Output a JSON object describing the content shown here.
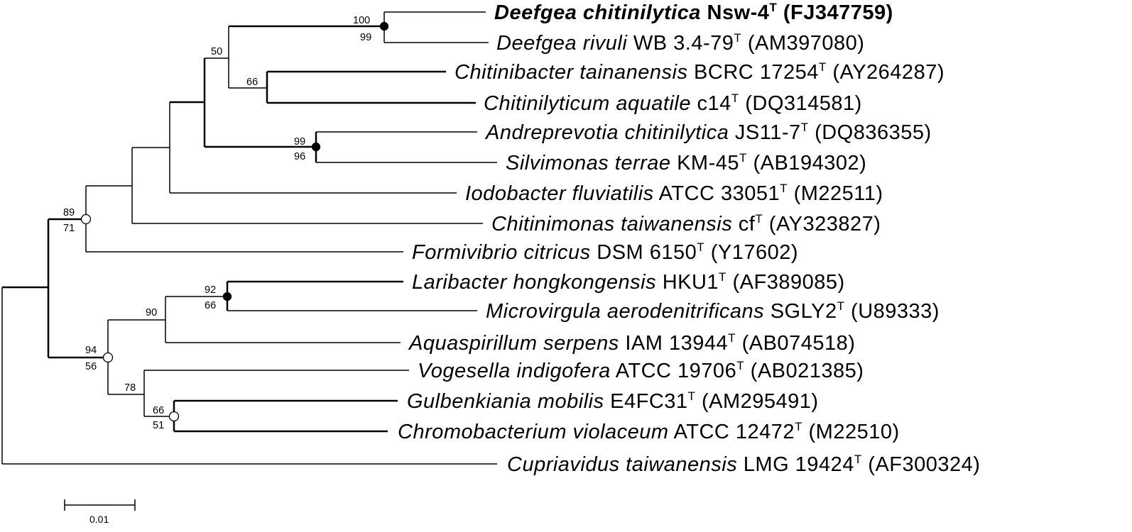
{
  "taxa": [
    {
      "genus": "Deefgea chitinilytica",
      "strain": "Nsw-4",
      "type": "T",
      "accession": "(FJ347759)",
      "bold": true
    },
    {
      "genus": "Deefgea rivuli",
      "strain": "WB 3.4-79",
      "type": "T",
      "accession": "(AM397080)",
      "bold": false
    },
    {
      "genus": "Chitinibacter tainanensis",
      "strain": "BCRC 17254",
      "type": "T",
      "accession": "(AY264287)",
      "bold": false
    },
    {
      "genus": "Chitinilyticum aquatile",
      "strain": "c14",
      "type": "T",
      "accession": "(DQ314581)",
      "bold": false
    },
    {
      "genus": "Andreprevotia chitinilytica",
      "strain": "JS11-7",
      "type": "T",
      "accession": "(DQ836355)",
      "bold": false
    },
    {
      "genus": "Silvimonas terrae",
      "strain": "KM-45",
      "type": "T",
      "accession": "(AB194302)",
      "bold": false
    },
    {
      "genus": "Iodobacter fluviatilis",
      "strain": "ATCC 33051",
      "type": "T",
      "accession": "(M22511)",
      "bold": false
    },
    {
      "genus": "Chitinimonas taiwanensis",
      "strain": "cf",
      "type": "T",
      "accession": "(AY323827)",
      "bold": false
    },
    {
      "genus": "Formivibrio citricus",
      "strain": "DSM 6150",
      "type": "T",
      "accession": "(Y17602)",
      "bold": false
    },
    {
      "genus": "Laribacter hongkongensis",
      "strain": "HKU1",
      "type": "T",
      "accession": "(AF389085)",
      "bold": false
    },
    {
      "genus": "Microvirgula aerodenitrificans",
      "strain": "SGLY2",
      "type": "T",
      "accession": "(U89333)",
      "bold": false
    },
    {
      "genus": "Aquaspirillum serpens",
      "strain": "IAM 13944",
      "type": "T",
      "accession": "(AB074518)",
      "bold": false
    },
    {
      "genus": "Vogesella indigofera",
      "strain": "ATCC 19706",
      "type": "T",
      "accession": "(AB021385)",
      "bold": false
    },
    {
      "genus": "Gulbenkiania mobilis",
      "strain": "E4FC31",
      "type": "T",
      "accession": "(AM295491)",
      "bold": false
    },
    {
      "genus": "Chromobacterium violaceum",
      "strain": "ATCC 12472",
      "type": "T",
      "accession": "(M22510)",
      "bold": false
    },
    {
      "genus": "Cupriavidus taiwanensis",
      "strain": "LMG 19424",
      "type": "T",
      "accession": "(AF300324)",
      "bold": false
    }
  ],
  "bootstrap": {
    "deefgea_top": "100",
    "deefgea_bottom": "99",
    "clade_50": "50",
    "clade_66": "66",
    "andreprevotia_top": "99",
    "andreprevotia_bottom": "96",
    "main_top": "89",
    "main_bottom": "71",
    "laribacter_top": "92",
    "laribacter_bottom": "66",
    "clade_90": "90",
    "lower_top": "94",
    "lower_bottom": "56",
    "clade_78": "78",
    "gulbenkiania_top": "66",
    "gulbenkiania_bottom": "51"
  },
  "scale_bar": {
    "label": "0.01"
  }
}
